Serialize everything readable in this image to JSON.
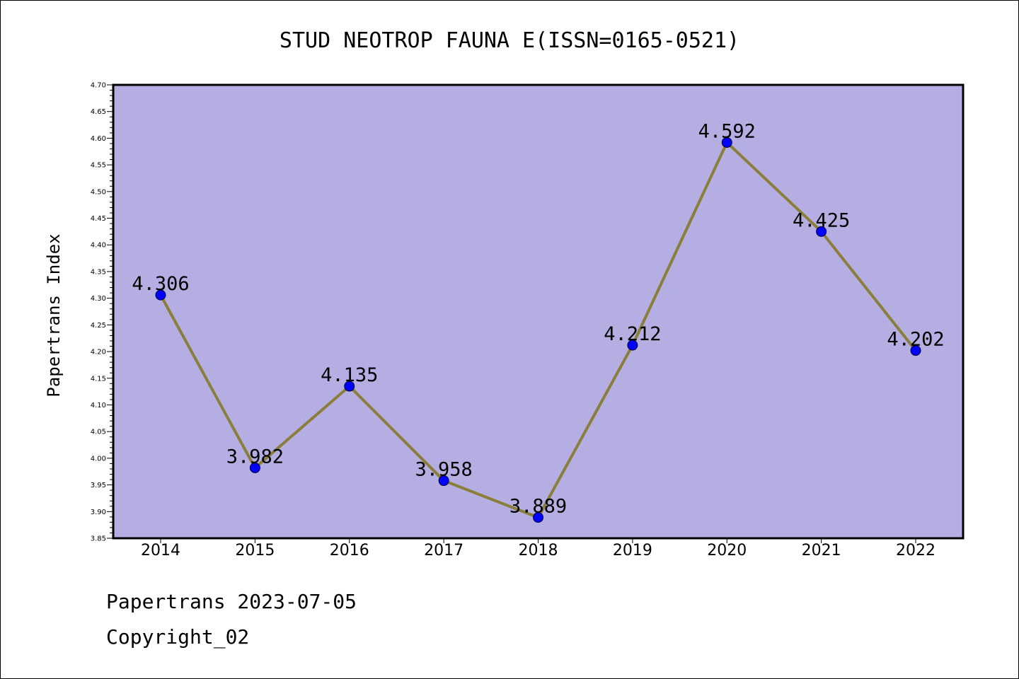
{
  "chart_data": {
    "type": "line",
    "title": "STUD NEOTROP FAUNA E(ISSN=0165-0521)",
    "ylabel": "Papertrans Index",
    "xlabel": "",
    "categories": [
      "2014",
      "2015",
      "2016",
      "2017",
      "2018",
      "2019",
      "2020",
      "2021",
      "2022"
    ],
    "values": [
      4.306,
      3.982,
      4.135,
      3.958,
      3.889,
      4.212,
      4.592,
      4.425,
      4.202
    ],
    "data_labels": [
      "4.306",
      "3.982",
      "4.135",
      "3.958",
      "3.889",
      "4.212",
      "4.592",
      "4.425",
      "4.202"
    ],
    "ylim": [
      3.85,
      4.7
    ],
    "yticks": [
      "3.85",
      "3.90",
      "3.95",
      "4.00",
      "4.05",
      "4.10",
      "4.15",
      "4.20",
      "4.25",
      "4.30",
      "4.35",
      "4.40",
      "4.45",
      "4.50",
      "4.55",
      "4.60",
      "4.65",
      "4.70"
    ],
    "grid": false,
    "legend": "none",
    "colors": {
      "plot_background": "#b5aee2",
      "line": "#8b7d3a",
      "marker": "#0000ff"
    }
  },
  "footer": {
    "line1": "Papertrans 2023-07-05",
    "line2": "Copyright_02"
  }
}
